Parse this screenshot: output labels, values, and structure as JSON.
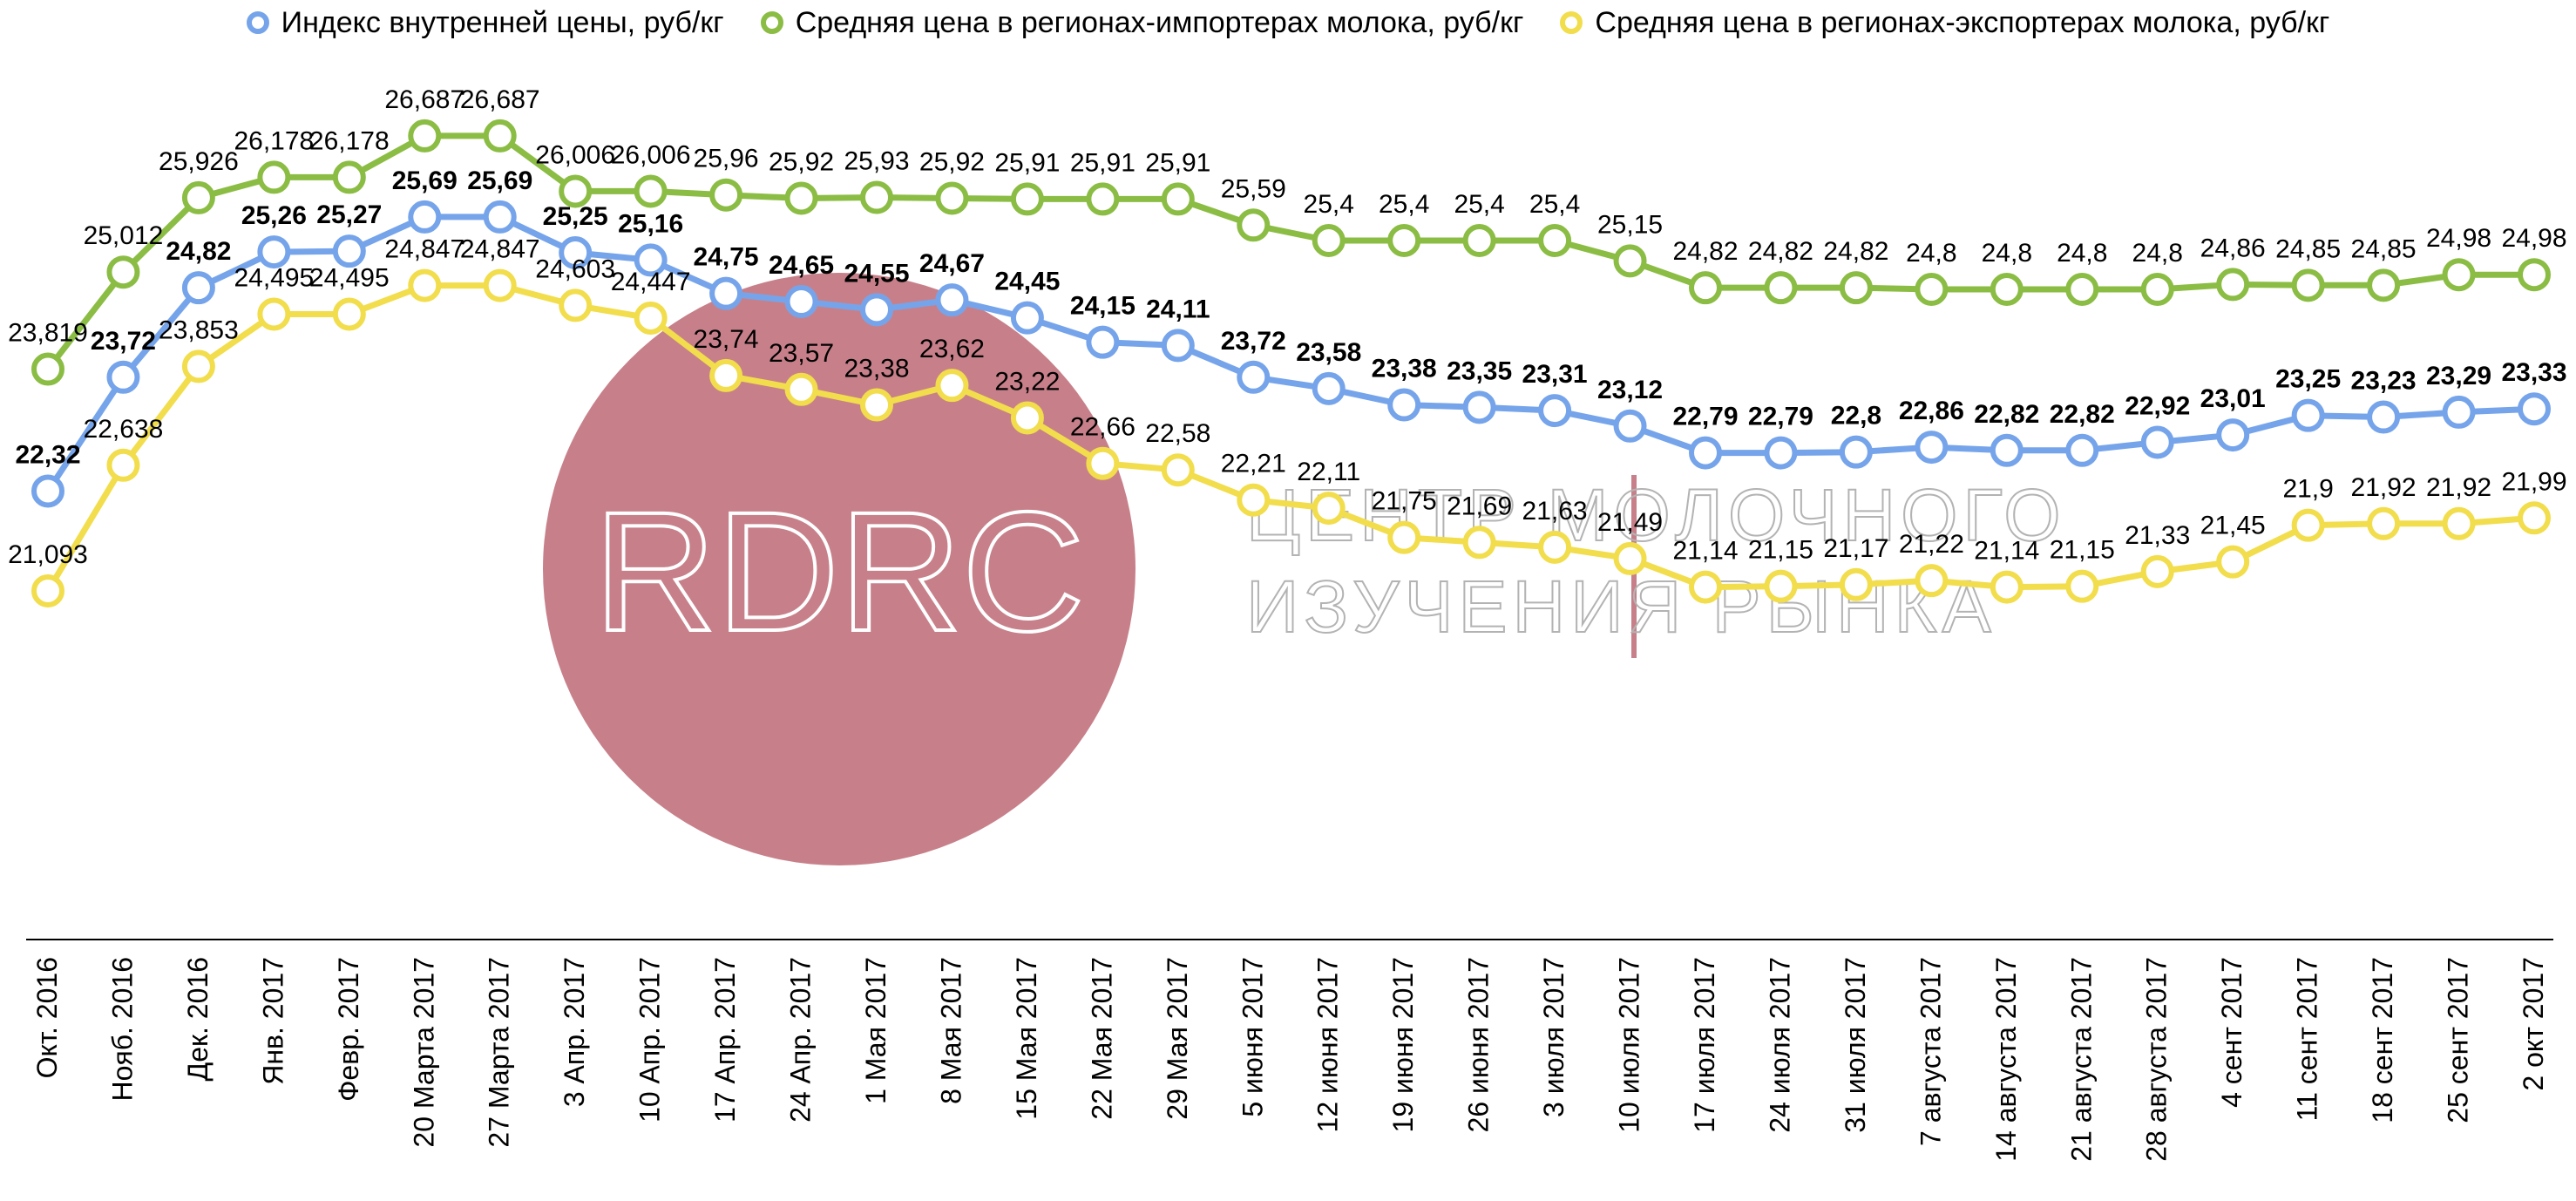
{
  "chart_data": {
    "type": "line",
    "title": "",
    "xlabel": "",
    "ylabel": "",
    "ylim": [
      17,
      27.5
    ],
    "grid": false,
    "legend_position": "top",
    "categories": [
      "Окт. 2016",
      "Нояб. 2016",
      "Дек. 2016",
      "Янв. 2017",
      "Февр. 2017",
      "20 Марта 2017",
      "27 Марта 2017",
      "3 Апр. 2017",
      "10 Апр. 2017",
      "17 Апр. 2017",
      "24 Апр. 2017",
      "1 Мая 2017",
      "8 Мая 2017",
      "15 Мая 2017",
      "22 Мая 2017",
      "29 Мая 2017",
      "5 июня 2017",
      "12 июня 2017",
      "19 июня 2017",
      "26 июня 2017",
      "3 июля 2017",
      "10 июля 2017",
      "17 июля 2017",
      "24 июля 2017",
      "31 июля 2017",
      "7 августа 2017",
      "14 августа 2017",
      "21 августа 2017",
      "28 августа 2017",
      "4 сент 2017",
      "11 сент 2017",
      "18 сент 2017",
      "25 сент 2017",
      "2 окт 2017"
    ],
    "series": [
      {
        "name": "Индекс внутренней цены, руб/кг",
        "color": "#76a4ea",
        "bold_labels": true,
        "values": [
          22.32,
          23.72,
          24.82,
          25.26,
          25.27,
          25.69,
          25.69,
          25.25,
          25.16,
          24.75,
          24.65,
          24.55,
          24.67,
          24.45,
          24.15,
          24.11,
          23.72,
          23.58,
          23.38,
          23.35,
          23.31,
          23.12,
          22.79,
          22.79,
          22.8,
          22.86,
          22.82,
          22.82,
          22.92,
          23.01,
          23.25,
          23.23,
          23.29,
          23.33
        ],
        "labels": [
          "22,32",
          "23,72",
          "24,82",
          "25,26",
          "25,27",
          "25,69",
          "25,69",
          "25,25",
          "25,16",
          "24,75",
          "24,65",
          "24,55",
          "24,67",
          "24,45",
          "24,15",
          "24,11",
          "23,72",
          "23,58",
          "23,38",
          "23,35",
          "23,31",
          "23,12",
          "22,79",
          "22,79",
          "22,8",
          "22,86",
          "22,82",
          "22,82",
          "22,92",
          "23,01",
          "23,25",
          "23,23",
          "23,29",
          "23,33"
        ]
      },
      {
        "name": "Средняя цена в регионах-импортерах молока, руб/кг",
        "color": "#8bbd45",
        "bold_labels": false,
        "values": [
          23.819,
          25.012,
          25.926,
          26.178,
          26.178,
          26.687,
          26.687,
          26.006,
          26.006,
          25.96,
          25.92,
          25.93,
          25.92,
          25.91,
          25.91,
          25.91,
          25.59,
          25.4,
          25.4,
          25.4,
          25.4,
          25.15,
          24.82,
          24.82,
          24.82,
          24.8,
          24.8,
          24.8,
          24.8,
          24.86,
          24.85,
          24.85,
          24.98,
          24.98
        ],
        "labels": [
          "23,819",
          "25,012",
          "25,926",
          "26,178",
          "26,178",
          "26,687",
          "26,687",
          "26,006",
          "26,006",
          "25,96",
          "25,92",
          "25,93",
          "25,92",
          "25,91",
          "25,91",
          "25,91",
          "25,59",
          "25,4",
          "25,4",
          "25,4",
          "25,4",
          "25,15",
          "24,82",
          "24,82",
          "24,82",
          "24,8",
          "24,8",
          "24,8",
          "24,8",
          "24,86",
          "24,85",
          "24,85",
          "24,98",
          "24,98"
        ]
      },
      {
        "name": "Средняя цена в регионах-экспортерах молока, руб/кг",
        "color": "#f2dd4c",
        "bold_labels": false,
        "values": [
          21.093,
          22.638,
          23.853,
          24.495,
          24.495,
          24.847,
          24.847,
          24.603,
          24.447,
          23.74,
          23.57,
          23.38,
          23.62,
          23.22,
          22.66,
          22.58,
          22.21,
          22.11,
          21.75,
          21.69,
          21.63,
          21.49,
          21.14,
          21.15,
          21.17,
          21.22,
          21.14,
          21.15,
          21.33,
          21.45,
          21.9,
          21.92,
          21.92,
          21.99
        ],
        "labels": [
          "21,093",
          "22,638",
          "23,853",
          "24,495",
          "24,495",
          "24,847",
          "24,847",
          "24,603",
          "24,447",
          "23,74",
          "23,57",
          "23,38",
          "23,62",
          "23,22",
          "22,66",
          "22,58",
          "22,21",
          "22,11",
          "21,75",
          "21,69",
          "21,63",
          "21,49",
          "21,14",
          "21,15",
          "21,17",
          "21,22",
          "21,14",
          "21,15",
          "21,33",
          "21,45",
          "21,9",
          "21,92",
          "21,92",
          "21,99"
        ]
      }
    ]
  },
  "watermark": {
    "logo_text": "RDRC",
    "line1": "ЦЕНТР МОЛОЧНОГО",
    "line2": "ИЗУЧЕНИЯ РЫНКА",
    "circle_color": "#c7808a"
  }
}
